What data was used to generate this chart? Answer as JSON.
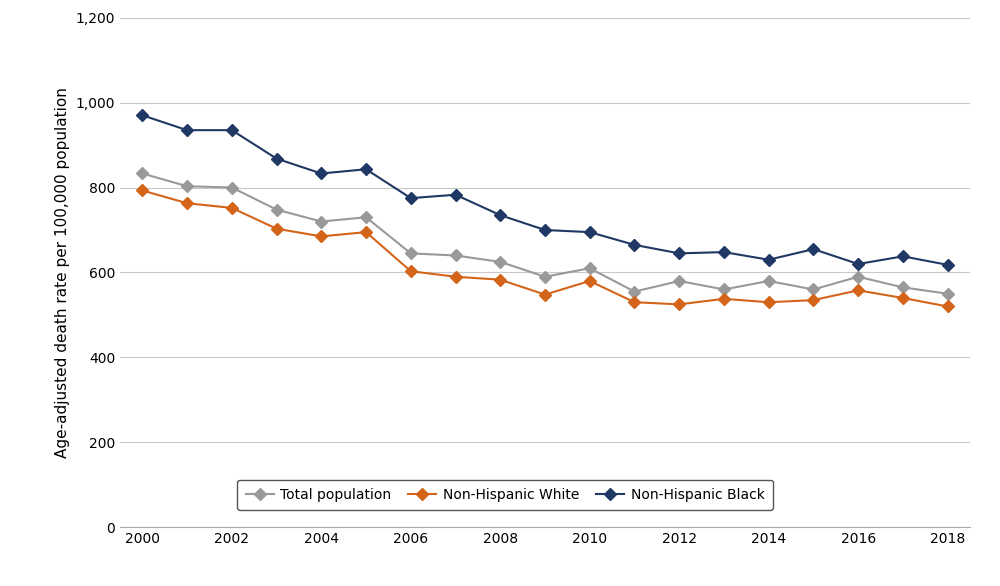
{
  "years": [
    2000,
    2001,
    2002,
    2003,
    2004,
    2005,
    2006,
    2007,
    2008,
    2009,
    2010,
    2011,
    2012,
    2013,
    2014,
    2015,
    2016,
    2017,
    2018
  ],
  "total_population": [
    833,
    803,
    800,
    748,
    720,
    730,
    645,
    640,
    625,
    590,
    610,
    555,
    580,
    560,
    580,
    560,
    590,
    565,
    550
  ],
  "non_hispanic_white": [
    793,
    763,
    752,
    703,
    685,
    695,
    603,
    590,
    583,
    548,
    580,
    530,
    525,
    538,
    530,
    535,
    558,
    540,
    520
  ],
  "non_hispanic_black": [
    970,
    935,
    935,
    868,
    833,
    843,
    775,
    783,
    735,
    700,
    695,
    665,
    645,
    648,
    630,
    655,
    620,
    638,
    618
  ],
  "total_color": "#999999",
  "white_color": "#d4641a",
  "black_color": "#1f3864",
  "ylabel": "Age-adjusted death rate per 100,000 population",
  "ylim": [
    0,
    1200
  ],
  "yticks": [
    0,
    200,
    400,
    600,
    800,
    1000,
    1200
  ],
  "xlim": [
    1999.5,
    2018.5
  ],
  "xticks": [
    2000,
    2002,
    2004,
    2006,
    2008,
    2010,
    2012,
    2014,
    2016,
    2018
  ],
  "legend_labels": [
    "Total population",
    "Non-Hispanic White",
    "Non-Hispanic Black"
  ],
  "background_color": "#ffffff",
  "grid_color": "#c8c8c8",
  "linewidth": 1.5,
  "markersize": 6
}
